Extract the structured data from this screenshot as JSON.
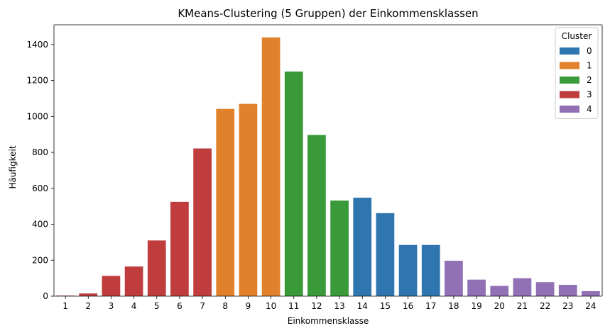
{
  "chart_data": {
    "type": "bar",
    "title": "KMeans-Clustering (5 Gruppen) der Einkommensklassen",
    "xlabel": "Einkommensklasse",
    "ylabel": "Häufigkeit",
    "ylim": [
      0,
      1510
    ],
    "yticks": [
      0,
      200,
      400,
      600,
      800,
      1000,
      1200,
      1400
    ],
    "categories": [
      "1",
      "2",
      "3",
      "4",
      "5",
      "6",
      "7",
      "8",
      "9",
      "10",
      "11",
      "12",
      "13",
      "14",
      "15",
      "16",
      "17",
      "18",
      "19",
      "20",
      "21",
      "22",
      "23",
      "24"
    ],
    "values": [
      3,
      15,
      113,
      165,
      310,
      525,
      822,
      1042,
      1070,
      1440,
      1250,
      897,
      532,
      548,
      462,
      285,
      285,
      197,
      92,
      57,
      100,
      78,
      63,
      28
    ],
    "cluster": [
      3,
      3,
      3,
      3,
      3,
      3,
      3,
      1,
      1,
      1,
      2,
      2,
      2,
      0,
      0,
      0,
      0,
      4,
      4,
      4,
      4,
      4,
      4,
      4
    ],
    "legend": {
      "title": "Cluster",
      "position": "top-right",
      "entries": [
        "0",
        "1",
        "2",
        "3",
        "4"
      ]
    },
    "cluster_colors": [
      "#2f76b0",
      "#e2812c",
      "#3a9a3a",
      "#c03d3e",
      "#9170b5"
    ],
    "grid": false
  }
}
